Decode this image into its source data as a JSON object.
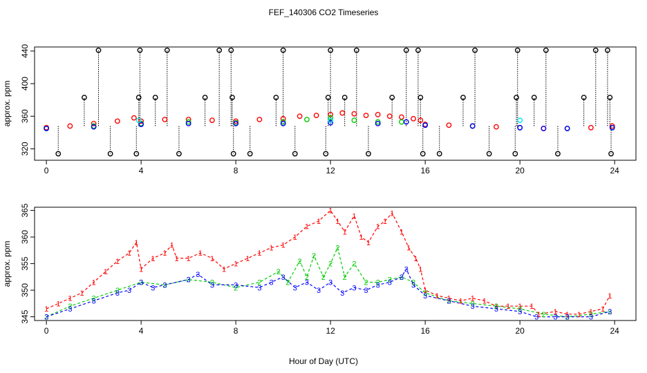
{
  "title": "FEF_140306  CO2 Timeseries",
  "colors": {
    "series1": "#ff0000",
    "series2": "#00cc00",
    "series3": "#0000ff",
    "cyan": "#00e5ee",
    "black": "#000000",
    "axis": "#000000"
  },
  "chart_data": [
    {
      "type": "scatter",
      "title": "FEF_140306  CO2 Timeseries",
      "xlabel": "",
      "ylabel": "approx. ppm",
      "xlim": [
        -0.5,
        24.9
      ],
      "ylim": [
        306,
        445
      ],
      "xticks": [
        0,
        4,
        8,
        12,
        16,
        20,
        24
      ],
      "yticks": [
        320,
        360,
        400,
        440
      ],
      "series": [
        {
          "name": "red",
          "color": "#ff0000",
          "x": [
            0.0,
            1.0,
            2.0,
            3.0,
            3.7,
            4.0,
            5.0,
            6.0,
            7.0,
            8.0,
            9.0,
            10.0,
            10.7,
            11.4,
            12.0,
            12.5,
            13.0,
            13.5,
            14.0,
            14.5,
            15.0,
            15.5,
            15.8,
            16.0,
            17.0,
            18.0,
            19.0,
            20.0,
            21.0,
            22.0,
            23.0,
            23.9
          ],
          "y": [
            346,
            348,
            351,
            354,
            358,
            354,
            356,
            356,
            355,
            354,
            356,
            357,
            360,
            361,
            362,
            364,
            363,
            361,
            362,
            360,
            359,
            357,
            355,
            350,
            349,
            348,
            347,
            346,
            345,
            345,
            346,
            348
          ]
        },
        {
          "name": "green",
          "color": "#00cc00",
          "x": [
            0.0,
            2.0,
            4.0,
            6.0,
            8.0,
            10.0,
            11.0,
            12.0,
            13.0,
            14.0,
            15.0,
            16.0,
            18.0,
            20.0,
            22.0,
            23.9
          ],
          "y": [
            345,
            348,
            351,
            353,
            352,
            353,
            356,
            358,
            355,
            353,
            353,
            349,
            348,
            346,
            345,
            346
          ]
        },
        {
          "name": "blue",
          "color": "#0000ff",
          "x": [
            0.0,
            2.0,
            4.0,
            6.0,
            8.0,
            10.0,
            12.0,
            14.0,
            15.2,
            16.0,
            18.0,
            20.0,
            21.0,
            22.0,
            23.9
          ],
          "y": [
            345,
            347,
            350,
            351,
            351,
            351,
            352,
            351,
            353,
            349,
            348,
            346,
            345,
            345,
            346
          ]
        },
        {
          "name": "black spikes",
          "color": "#000000",
          "x": [
            0.5,
            1.6,
            2.2,
            2.7,
            3.8,
            3.9,
            3.95,
            4.6,
            5.1,
            5.6,
            6.7,
            7.3,
            7.8,
            7.85,
            7.9,
            8.6,
            9.7,
            10.0,
            10.5,
            11.8,
            11.9,
            12.0,
            12.6,
            13.1,
            13.6,
            14.6,
            15.2,
            15.7,
            15.8,
            15.9,
            16.6,
            17.6,
            18.1,
            18.7,
            19.8,
            19.85,
            19.9,
            20.6,
            21.1,
            21.6,
            22.7,
            23.2,
            23.7,
            23.8,
            23.85
          ],
          "y": [
            314,
            383,
            441,
            314,
            314,
            383,
            441,
            383,
            441,
            314,
            383,
            441,
            441,
            383,
            314,
            314,
            383,
            441,
            314,
            314,
            383,
            441,
            383,
            441,
            314,
            383,
            441,
            441,
            383,
            314,
            314,
            383,
            441,
            314,
            314,
            383,
            441,
            383,
            441,
            314,
            383,
            441,
            441,
            383,
            314
          ]
        },
        {
          "name": "cyan",
          "color": "#00e5ee",
          "x": [
            3.9,
            12.0,
            20.0
          ],
          "y": [
            355,
            355,
            355
          ]
        }
      ]
    },
    {
      "type": "scatter",
      "title": "",
      "xlabel": "Hour of Day (UTC)",
      "ylabel": "approx. ppm",
      "xlim": [
        -0.5,
        24.9
      ],
      "ylim": [
        344.3,
        365.6
      ],
      "xticks": [
        0,
        4,
        8,
        12,
        16,
        20,
        24
      ],
      "yticks": [
        345,
        350,
        355,
        360,
        365
      ],
      "series": [
        {
          "name": "1",
          "label": "1",
          "color": "#ff0000",
          "x": [
            0.0,
            0.5,
            1.0,
            1.5,
            2.0,
            2.5,
            3.0,
            3.5,
            3.8,
            4.0,
            4.5,
            5.0,
            5.3,
            5.5,
            6.0,
            6.5,
            7.0,
            7.5,
            8.0,
            8.5,
            9.0,
            9.5,
            10.0,
            10.5,
            11.0,
            11.5,
            12.0,
            12.3,
            12.6,
            13.0,
            13.3,
            13.6,
            14.0,
            14.3,
            14.6,
            15.0,
            15.3,
            15.6,
            15.8,
            16.0,
            16.5,
            17.0,
            17.5,
            18.0,
            18.5,
            19.0,
            19.5,
            20.0,
            20.5,
            20.8,
            21.5,
            22.0,
            22.5,
            23.0,
            23.5,
            23.8
          ],
          "y": [
            346.5,
            347.5,
            348.5,
            349.5,
            351.5,
            353.5,
            355.5,
            357.0,
            359.0,
            354.0,
            356.0,
            357.0,
            358.5,
            356.0,
            356.0,
            357.0,
            356.0,
            354.0,
            355.0,
            356.0,
            357.0,
            358.0,
            358.5,
            360.0,
            362.0,
            363.0,
            365.0,
            363.0,
            361.0,
            364.0,
            360.0,
            359.0,
            362.0,
            363.0,
            364.5,
            361.0,
            358.0,
            356.0,
            354.0,
            350.0,
            349.0,
            348.5,
            348.0,
            348.5,
            348.0,
            347.0,
            347.0,
            347.0,
            347.0,
            345.5,
            346.0,
            345.5,
            345.5,
            346.0,
            346.5,
            349.0
          ]
        },
        {
          "name": "2",
          "label": "2",
          "color": "#00cc00",
          "x": [
            0.0,
            1.0,
            2.0,
            3.0,
            4.0,
            5.0,
            6.0,
            7.0,
            8.0,
            9.0,
            9.8,
            10.2,
            10.7,
            11.0,
            11.3,
            11.7,
            12.0,
            12.3,
            12.6,
            13.0,
            13.5,
            14.0,
            14.5,
            15.0,
            15.5,
            16.0,
            17.0,
            18.0,
            19.0,
            20.0,
            21.0,
            22.0,
            23.0,
            23.8
          ],
          "y": [
            345.0,
            347.0,
            348.5,
            350.0,
            351.5,
            351.0,
            352.0,
            351.5,
            350.5,
            351.5,
            353.5,
            351.5,
            355.5,
            352.5,
            356.5,
            352.5,
            355.0,
            358.0,
            352.5,
            355.0,
            351.5,
            351.5,
            352.0,
            352.5,
            351.5,
            349.5,
            348.0,
            347.5,
            347.0,
            346.5,
            345.5,
            345.0,
            345.5,
            346.0
          ]
        },
        {
          "name": "3",
          "label": "3",
          "color": "#0000ff",
          "x": [
            0.0,
            1.0,
            2.0,
            3.0,
            3.5,
            4.0,
            4.5,
            5.0,
            6.0,
            6.4,
            7.0,
            8.0,
            9.0,
            9.5,
            10.0,
            10.5,
            11.0,
            11.5,
            12.0,
            12.5,
            13.0,
            13.5,
            14.0,
            14.5,
            15.0,
            15.2,
            15.5,
            16.0,
            17.0,
            18.0,
            19.0,
            20.0,
            20.7,
            21.5,
            22.0,
            23.0,
            23.8
          ],
          "y": [
            345.0,
            346.5,
            348.0,
            349.5,
            350.0,
            351.5,
            350.5,
            351.0,
            352.0,
            353.0,
            351.0,
            351.0,
            350.5,
            351.5,
            352.5,
            350.5,
            351.5,
            350.0,
            351.5,
            349.5,
            350.5,
            350.0,
            351.0,
            351.5,
            352.5,
            354.0,
            351.0,
            349.0,
            348.0,
            347.0,
            346.5,
            346.0,
            345.0,
            345.0,
            345.0,
            345.0,
            346.0
          ]
        }
      ]
    }
  ]
}
